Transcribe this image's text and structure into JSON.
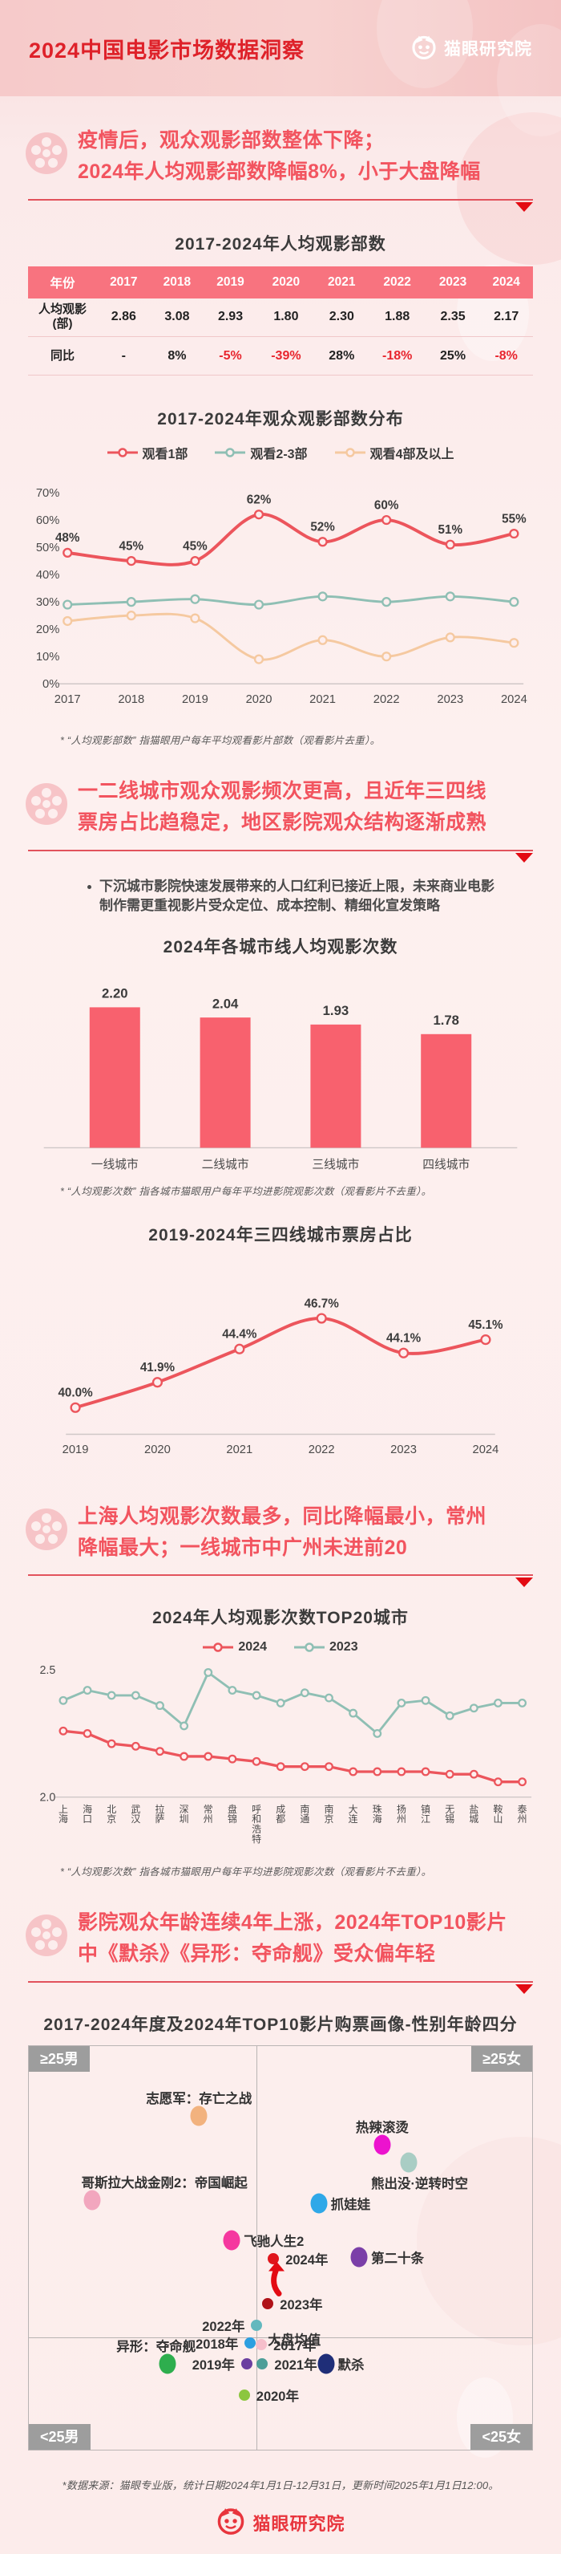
{
  "header": {
    "title": "2024中国电影市场数据洞察",
    "brand": "猫眼研究院"
  },
  "colors": {
    "accent_red": "#e8252e",
    "heading_pink": "#f2545f",
    "table_header": "#f8737f",
    "line_red": "#ec555c",
    "line_teal": "#8fbfb4",
    "line_orange": "#f5c9a0",
    "bar_pink": "#f8616e"
  },
  "sections": {
    "s1": {
      "lines": [
        "疫情后，观众观影部数整体下降；",
        "2024年人均观影部数降幅8%，小于大盘降幅"
      ]
    },
    "s2": {
      "lines": [
        "一二线城市观众观影频次更高，且近年三四线",
        "票房占比趋稳定，地区影院观众结构逐渐成熟"
      ],
      "bullet": "下沉城市影院快速发展带来的人口红利已接近上限，未来商业电影制作需更重视影片受众定位、成本控制、精细化宣发策略"
    },
    "s3": {
      "lines": [
        "上海人均观影次数最多，同比降幅最小，常州",
        "降幅最大；一线城市中广州未进前20"
      ]
    },
    "s4": {
      "lines": [
        "影院观众年龄连续4年上涨，2024年TOP10影片",
        "中《默杀》《异形：夺命舰》受众偏年轻"
      ]
    }
  },
  "table": {
    "title": "2017-2024年人均观影部数",
    "header": [
      "年份",
      "2017",
      "2018",
      "2019",
      "2020",
      "2021",
      "2022",
      "2023",
      "2024"
    ],
    "rows": [
      {
        "label": "人均观影 (部)",
        "values": [
          "2.86",
          "3.08",
          "2.93",
          "1.80",
          "2.30",
          "1.88",
          "2.35",
          "2.17"
        ]
      },
      {
        "label": "同比",
        "values": [
          "-",
          "8%",
          "-5%",
          "-39%",
          "28%",
          "-18%",
          "25%",
          "-8%"
        ]
      }
    ]
  },
  "footnotes": {
    "f1": "* “人均观影部数” 指猫眼用户每年平均观看影片部数（观看影片去重）。",
    "f2": "* “人均观影次数” 指各城市猫眼用户每年平均进影院观影次数（观看影片不去重）。",
    "f3": "* “人均观影次数” 指各城市猫眼用户每年平均进影院观影次数（观看影片不去重）。"
  },
  "chart_data": [
    {
      "id": "dist",
      "type": "line",
      "title": "2017-2024年观众观影部数分布",
      "x": [
        "2017",
        "2018",
        "2019",
        "2020",
        "2021",
        "2022",
        "2023",
        "2024"
      ],
      "ylim": [
        0,
        70
      ],
      "yticks": [
        0,
        10,
        20,
        30,
        40,
        50,
        60,
        70
      ],
      "ytick_suffix": "%",
      "legend_position": "top",
      "grid": false,
      "series": [
        {
          "name": "观看1部",
          "color": "#ec555c",
          "values": [
            48,
            45,
            45,
            62,
            52,
            60,
            51,
            55
          ],
          "labeled": true,
          "decimals": 0,
          "suffix": "%",
          "lw": 4
        },
        {
          "name": "观看2-3部",
          "color": "#8fbfb4",
          "values": [
            29,
            30,
            31,
            29,
            32,
            30,
            32,
            30
          ],
          "lw": 3
        },
        {
          "name": "观看4部及以上",
          "color": "#f5c9a0",
          "values": [
            23,
            25,
            24,
            9,
            16,
            10,
            17,
            15
          ],
          "lw": 3
        }
      ]
    },
    {
      "id": "citybar",
      "type": "bar",
      "title": "2024年各城市线人均观影次数",
      "categories": [
        "一线城市",
        "二线城市",
        "三线城市",
        "四线城市"
      ],
      "values": [
        2.2,
        2.04,
        1.93,
        1.78
      ],
      "value_decimals": 2,
      "color": "#f8616e",
      "ylim": [
        0,
        2.4
      ],
      "grid": false
    },
    {
      "id": "share",
      "type": "line",
      "title": "2019-2024年三四线城市票房占比",
      "x": [
        "2019",
        "2020",
        "2021",
        "2022",
        "2023",
        "2024"
      ],
      "ylim": [
        38,
        49.5
      ],
      "yticks": [],
      "grid": false,
      "series": [
        {
          "name": "三四线城市票房占比",
          "color": "#ec555c",
          "values": [
            40.0,
            41.9,
            44.4,
            46.7,
            44.1,
            45.1
          ],
          "labeled": true,
          "decimals": 1,
          "suffix": "%",
          "lw": 4
        }
      ]
    },
    {
      "id": "top20",
      "type": "line",
      "title": "2024年人均观影次数TOP20城市",
      "x": [
        "上海",
        "海口",
        "北京",
        "武汉",
        "拉萨",
        "深圳",
        "常州",
        "盘锦",
        "呼和浩特",
        "成都",
        "南通",
        "南京",
        "大连",
        "珠海",
        "扬州",
        "镇江",
        "无锡",
        "盐城",
        "鞍山",
        "泰州"
      ],
      "x_vertical": true,
      "ylim": [
        2.0,
        2.5
      ],
      "yticks": [
        2.5,
        2.0
      ],
      "ytick_decimals": 1,
      "grid": false,
      "values_note": "unlabeled in source, read from curve",
      "series": [
        {
          "name": "2024",
          "color": "#ec555c",
          "values": [
            2.26,
            2.25,
            2.21,
            2.2,
            2.18,
            2.16,
            2.16,
            2.15,
            2.14,
            2.12,
            2.12,
            2.12,
            2.1,
            2.1,
            2.1,
            2.1,
            2.09,
            2.09,
            2.06,
            2.06
          ],
          "lw": 3.5
        },
        {
          "name": "2023",
          "color": "#8fbfb4",
          "values": [
            2.38,
            2.42,
            2.4,
            2.4,
            2.36,
            2.28,
            2.49,
            2.42,
            2.4,
            2.37,
            2.41,
            2.39,
            2.33,
            2.25,
            2.37,
            2.38,
            2.32,
            2.35,
            2.37,
            2.37
          ],
          "lw": 3
        }
      ]
    },
    {
      "id": "portrait",
      "type": "scatter",
      "title": "2017-2024年度及2024年TOP10影片购票画像-性别年龄四分",
      "quadrant_labels": {
        "top_left": "≥25男",
        "top_right": "≥25女",
        "bottom_left": "<25男",
        "bottom_right": "<25女"
      },
      "divider": {
        "vx": 45.3,
        "hy": 72.3
      },
      "average_label": "大盘均值",
      "points": [
        {
          "name": "志愿军：存亡之战",
          "x": 33.8,
          "y": 17.3,
          "color": "#f2b27e",
          "kind": "dot",
          "label_pos": "top"
        },
        {
          "name": "热辣滚烫",
          "x": 70.2,
          "y": 24.5,
          "color": "#ec13ce",
          "kind": "dot",
          "label_pos": "top"
        },
        {
          "name": "熊出没·逆转时空",
          "x": 75.4,
          "y": 28.8,
          "color": "#a9cdc4",
          "kind": "dot",
          "label_pos": "bottom",
          "dx": 14
        },
        {
          "name": "哥斯拉大战金刚2：帝国崛起",
          "x": 12.6,
          "y": 38.2,
          "color": "#f2a6be",
          "kind": "dot",
          "label_pos": "top",
          "dx": 90
        },
        {
          "name": "抓娃娃",
          "x": 57.6,
          "y": 39.1,
          "color": "#2fa8e8",
          "kind": "dot",
          "label_pos": "right"
        },
        {
          "name": "飞驰人生2",
          "x": 40.3,
          "y": 48.2,
          "color": "#f5389f",
          "kind": "dot",
          "label_pos": "right"
        },
        {
          "name": "第二十条",
          "x": 65.6,
          "y": 52.4,
          "color": "#7b3fa8",
          "kind": "dot",
          "label_pos": "right"
        },
        {
          "name": "2024年",
          "x": 48.6,
          "y": 52.8,
          "color": "#e0161c",
          "kind": "ring",
          "label_pos": "right"
        },
        {
          "name": "2023年",
          "x": 47.5,
          "y": 63.8,
          "color": "#b01218",
          "kind": "ring",
          "label_pos": "right"
        },
        {
          "name": "2022年",
          "x": 45.3,
          "y": 69.2,
          "color": "#63b8be",
          "kind": "ring",
          "label_pos": "left"
        },
        {
          "name": "2017年",
          "x": 46.2,
          "y": 74.0,
          "color": "#f6bfcb",
          "kind": "ring",
          "label_pos": "right"
        },
        {
          "name": "2018年",
          "x": 44.0,
          "y": 73.6,
          "color": "#2d9fe0",
          "kind": "ring",
          "label_pos": "left"
        },
        {
          "name": "异形：夺命舰",
          "x": 27.5,
          "y": 78.8,
          "color": "#2eae4e",
          "kind": "dot",
          "label_pos": "top",
          "dx": -14
        },
        {
          "name": "2019年",
          "x": 43.3,
          "y": 78.8,
          "color": "#6b3fa0",
          "kind": "ring",
          "label_pos": "left"
        },
        {
          "name": "2021年",
          "x": 46.4,
          "y": 78.8,
          "color": "#4d9e98",
          "kind": "ring",
          "label_pos": "right"
        },
        {
          "name": "默杀",
          "x": 59.0,
          "y": 78.8,
          "color": "#1f2e78",
          "kind": "dot",
          "label_pos": "right"
        },
        {
          "name": "2020年",
          "x": 42.8,
          "y": 86.5,
          "color": "#8cc63f",
          "kind": "ring",
          "label_pos": "right"
        }
      ],
      "arrow": {
        "x": 49.3,
        "y": 58.2
      }
    }
  ],
  "footer": {
    "source": "*数据来源：猫眼专业版，统计日期2024年1月1日-12月31日，更新时间2025年1月1日12:00。",
    "brand": "猫眼研究院"
  }
}
